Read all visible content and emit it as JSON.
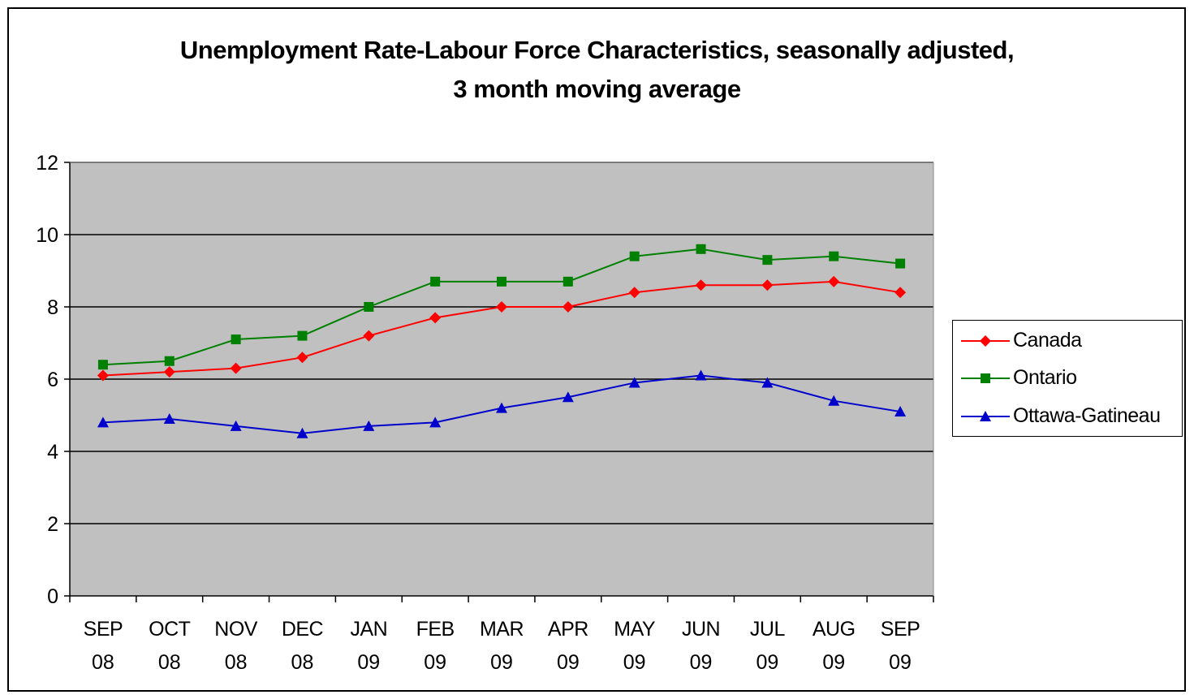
{
  "chart_data": {
    "type": "line",
    "title": "Unemployment Rate-Labour Force Characteristics, seasonally adjusted,",
    "subtitle": "3 month moving average",
    "categories": [
      {
        "line1": "SEP",
        "line2": "08"
      },
      {
        "line1": "OCT",
        "line2": "08"
      },
      {
        "line1": "NOV",
        "line2": "08"
      },
      {
        "line1": "DEC",
        "line2": "08"
      },
      {
        "line1": "JAN",
        "line2": "09"
      },
      {
        "line1": "FEB",
        "line2": "09"
      },
      {
        "line1": "MAR",
        "line2": "09"
      },
      {
        "line1": "APR",
        "line2": "09"
      },
      {
        "line1": "MAY",
        "line2": "09"
      },
      {
        "line1": "JUN",
        "line2": "09"
      },
      {
        "line1": "JUL",
        "line2": "09"
      },
      {
        "line1": "AUG",
        "line2": "09"
      },
      {
        "line1": "SEP",
        "line2": "09"
      }
    ],
    "ylim": [
      0,
      12
    ],
    "yticks": [
      "0",
      "2",
      "4",
      "6",
      "8",
      "10",
      "12"
    ],
    "grid": true,
    "plot_background": "#c0c0c0",
    "legend_position": "right",
    "series": [
      {
        "name": "Canada",
        "color": "#ff0000",
        "marker": "diamond",
        "values": [
          6.1,
          6.2,
          6.3,
          6.6,
          7.2,
          7.7,
          8.0,
          8.0,
          8.4,
          8.6,
          8.6,
          8.7,
          8.4
        ]
      },
      {
        "name": "Ontario",
        "color": "#008000",
        "marker": "square",
        "values": [
          6.4,
          6.5,
          7.1,
          7.2,
          8.0,
          8.7,
          8.7,
          8.7,
          9.4,
          9.6,
          9.3,
          9.4,
          9.2
        ]
      },
      {
        "name": "Ottawa-Gatineau",
        "color": "#0000cc",
        "marker": "triangle",
        "values": [
          4.8,
          4.9,
          4.7,
          4.5,
          4.7,
          4.8,
          5.2,
          5.5,
          5.9,
          6.1,
          5.9,
          5.4,
          5.1
        ]
      }
    ]
  }
}
